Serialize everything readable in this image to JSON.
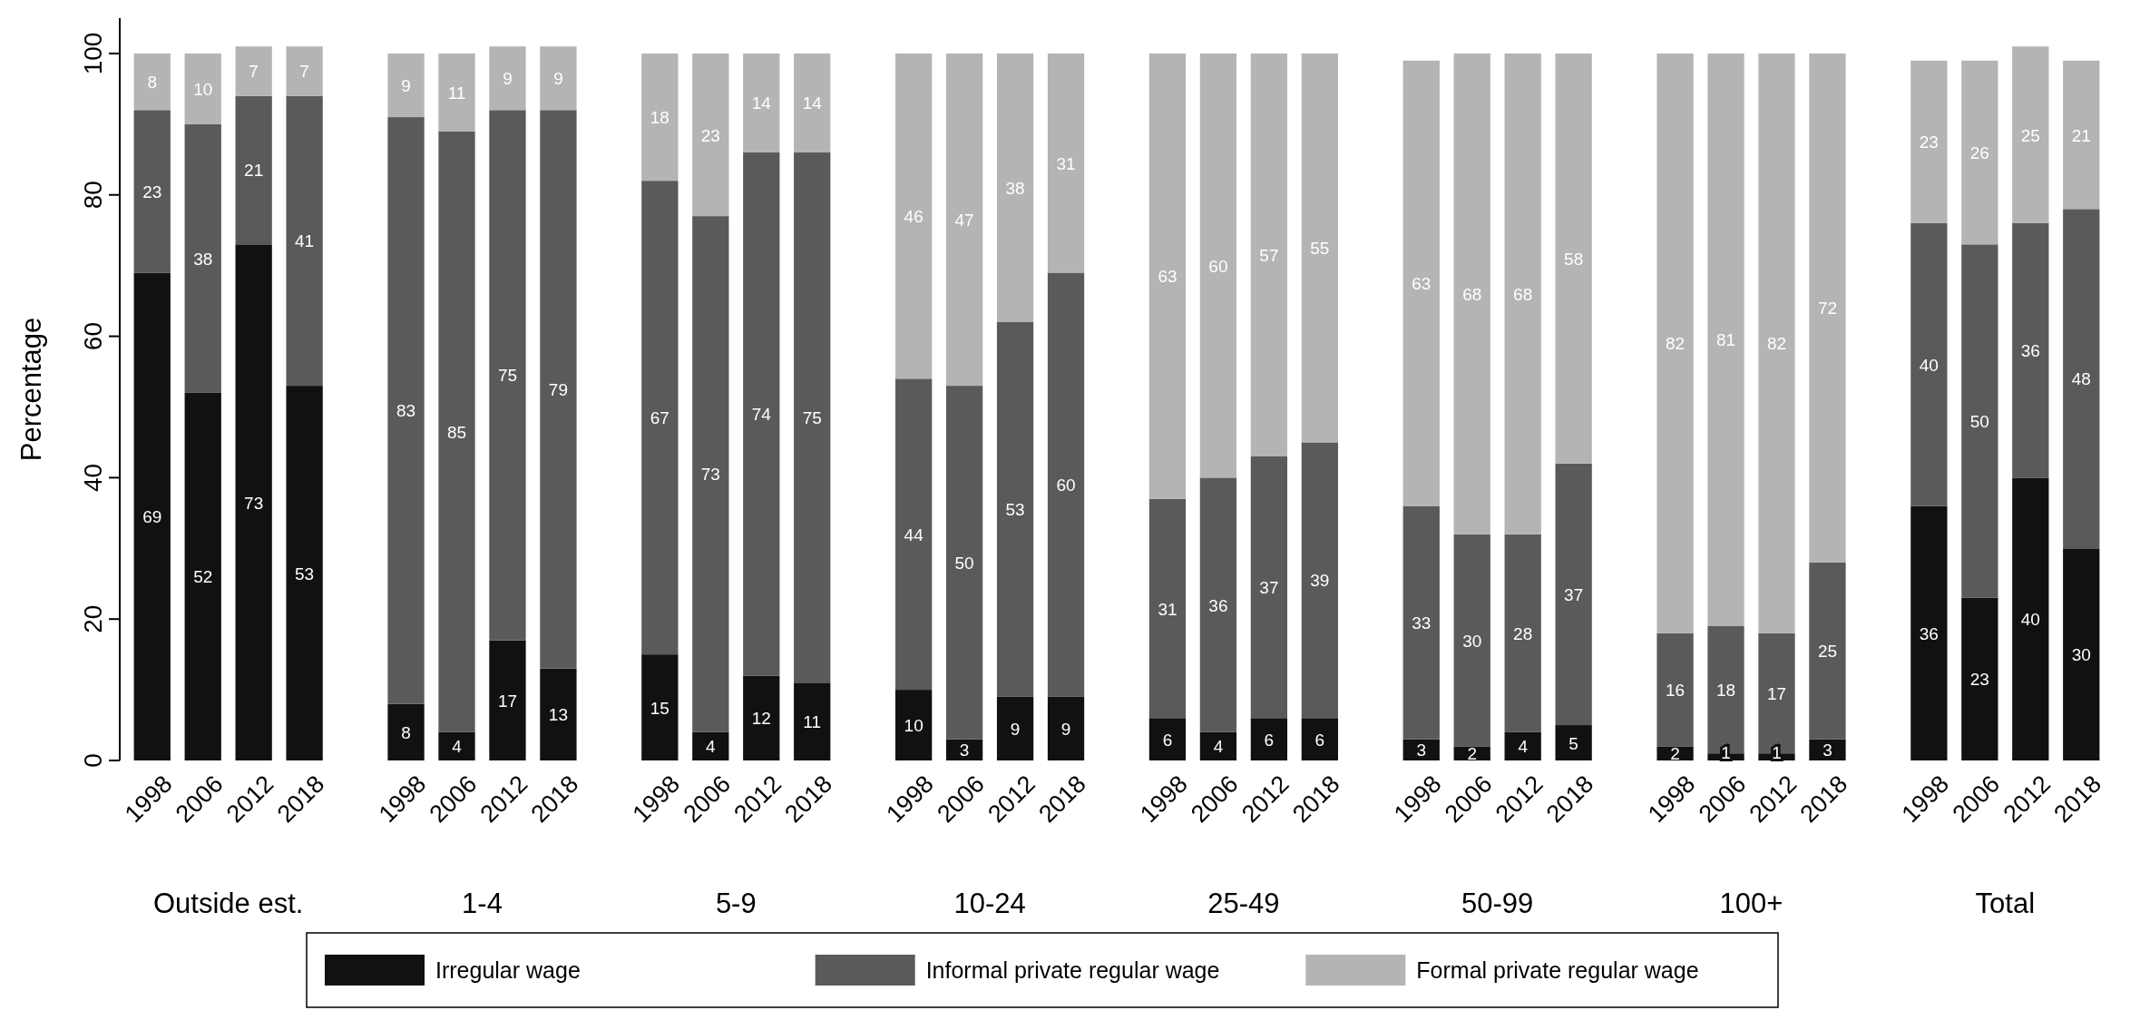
{
  "chart_data": {
    "type": "bar",
    "stacked": true,
    "ylabel": "Percentage",
    "ylim": [
      0,
      105
    ],
    "yticks": [
      0,
      20,
      40,
      60,
      80,
      100
    ],
    "grid": false,
    "legend": "bottom",
    "data_labels": true,
    "categories": [
      "1998",
      "2006",
      "2012",
      "2018",
      null,
      "1998",
      "2006",
      "2012",
      "2018",
      null,
      "1998",
      "2006",
      "2012",
      "2018",
      null,
      "1998",
      "2006",
      "2012",
      "2018",
      null,
      "1998",
      "2006",
      "2012",
      "2018",
      null,
      "1998",
      "2006",
      "2012",
      "2018",
      null,
      "1998",
      "2006",
      "2012",
      "2018",
      null,
      "1998",
      "2006",
      "2012",
      "2018"
    ],
    "annotations": [
      "Outside est.",
      "1-4",
      "5-9",
      "10-24",
      "25-49",
      "50-99",
      "100+",
      "Total"
    ],
    "series": [
      {
        "name": "Irregular wage",
        "color": "#111111",
        "values": [
          69,
          52,
          73,
          53,
          null,
          8,
          4,
          17,
          13,
          null,
          15,
          4,
          12,
          11,
          null,
          10,
          3,
          9,
          9,
          null,
          6,
          4,
          6,
          6,
          null,
          3,
          2,
          4,
          5,
          null,
          2,
          1,
          1,
          3,
          null,
          36,
          23,
          40,
          30
        ]
      },
      {
        "name": "Informal private regular wage",
        "color": "#5a5a5a",
        "values": [
          23,
          38,
          21,
          41,
          null,
          83,
          85,
          75,
          79,
          null,
          67,
          73,
          74,
          75,
          null,
          44,
          50,
          53,
          60,
          null,
          31,
          36,
          37,
          39,
          null,
          33,
          30,
          28,
          37,
          null,
          16,
          18,
          17,
          25,
          null,
          40,
          50,
          36,
          48
        ]
      },
      {
        "name": "Formal private regular wage",
        "color": "#b4b4b4",
        "values": [
          8,
          10,
          7,
          7,
          null,
          9,
          11,
          9,
          9,
          null,
          18,
          23,
          14,
          14,
          null,
          46,
          47,
          38,
          31,
          null,
          63,
          60,
          57,
          55,
          null,
          63,
          68,
          68,
          58,
          null,
          82,
          81,
          82,
          72,
          null,
          23,
          26,
          25,
          21
        ]
      }
    ]
  }
}
